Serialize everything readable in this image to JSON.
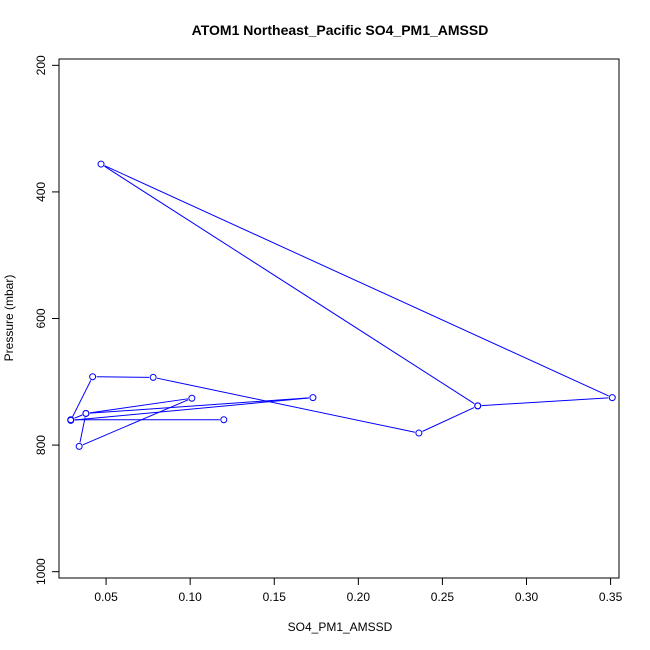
{
  "chart_data": {
    "type": "line",
    "title": "ATOM1 Northeast_Pacific SO4_PM1_AMSSD",
    "xlabel": "SO4_PM1_AMSSD",
    "ylabel": "Pressure (mbar)",
    "xlim": [
      0.022,
      0.355
    ],
    "ylim": [
      1010,
      190
    ],
    "y_reversed": true,
    "xticks": [
      0.05,
      0.1,
      0.15,
      0.2,
      0.25,
      0.3,
      0.35
    ],
    "xtick_labels": [
      "0.05",
      "0.10",
      "0.15",
      "0.20",
      "0.25",
      "0.30",
      "0.35"
    ],
    "yticks": [
      200,
      400,
      600,
      800,
      1000
    ],
    "ytick_labels": [
      "200",
      "400",
      "600",
      "800",
      "1000"
    ],
    "grid": false,
    "series": [
      {
        "color": "#0000ff",
        "marker": "open-circle",
        "x": [
          0.12,
          0.029,
          0.038,
          0.034,
          0.101,
          0.038,
          0.173,
          0.029,
          0.042,
          0.078,
          0.236,
          0.271,
          0.047,
          0.351,
          0.271
        ],
        "y": [
          760,
          760,
          750,
          802,
          726,
          750,
          725,
          761,
          692,
          693,
          781,
          738,
          356,
          725,
          738
        ]
      }
    ]
  }
}
